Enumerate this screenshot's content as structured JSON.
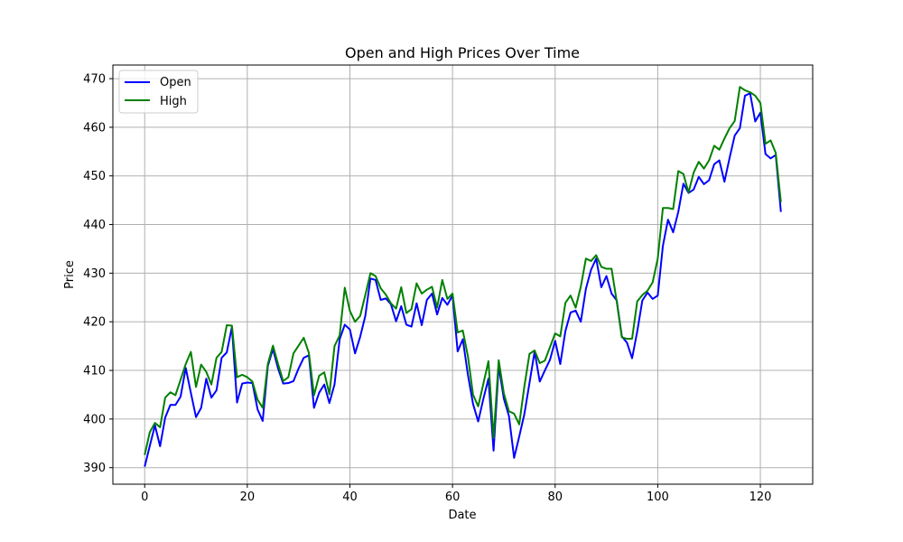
{
  "chart_data": {
    "type": "line",
    "title": "Open and High Prices Over Time",
    "xlabel": "Date",
    "ylabel": "Price",
    "xlim": [
      -6.2,
      130.2
    ],
    "ylim": [
      386.6,
      472.8
    ],
    "xticks": [
      0,
      20,
      40,
      60,
      80,
      100,
      120
    ],
    "yticks": [
      390,
      400,
      410,
      420,
      430,
      440,
      450,
      460,
      470
    ],
    "grid": true,
    "legend_position": "upper-left",
    "series": [
      {
        "name": "Open",
        "color": "#0000ff",
        "values": [
          390.2,
          394.5,
          398.7,
          394.4,
          400.3,
          402.9,
          402.9,
          404.6,
          410.5,
          405.4,
          400.4,
          402.3,
          408.3,
          404.4,
          405.9,
          412.6,
          413.7,
          418.9,
          403.4,
          407.3,
          407.5,
          407.4,
          402.0,
          399.6,
          410.9,
          414.4,
          410.4,
          407.3,
          407.4,
          407.8,
          410.4,
          412.6,
          413.1,
          402.3,
          405.4,
          407.1,
          403.3,
          407.1,
          416.4,
          419.4,
          418.4,
          413.5,
          416.9,
          421.2,
          428.9,
          428.6,
          424.5,
          424.8,
          423.6,
          420.1,
          423.2,
          419.4,
          419.0,
          423.8,
          419.3,
          424.5,
          425.8,
          421.5,
          424.9,
          423.5,
          425.4,
          413.9,
          416.4,
          409.1,
          403.1,
          399.5,
          404.1,
          408.3,
          393.5,
          410.9,
          404.2,
          400.6,
          392.0,
          396.4,
          401.0,
          407.4,
          413.9,
          407.7,
          410.0,
          412.2,
          416.1,
          411.3,
          418.1,
          421.9,
          422.3,
          420.0,
          426.8,
          430.7,
          433.0,
          427.1,
          429.4,
          425.8,
          424.4,
          417.0,
          415.7,
          412.5,
          418.0,
          424.4,
          426.0,
          424.7,
          425.4,
          435.6,
          441.0,
          438.4,
          442.6,
          448.4,
          446.5,
          447.2,
          449.8,
          448.3,
          449.1,
          452.4,
          453.2,
          448.8,
          453.7,
          458.3,
          459.8,
          466.5,
          467.0,
          461.2,
          463.0,
          454.5,
          453.6,
          454.3,
          442.6
        ]
      },
      {
        "name": "High",
        "color": "#008000",
        "values": [
          392.6,
          397.3,
          399.2,
          398.3,
          404.4,
          405.5,
          404.9,
          408.1,
          411.3,
          413.8,
          406.6,
          411.2,
          409.7,
          407.1,
          412.6,
          413.8,
          419.3,
          419.2,
          408.6,
          409.1,
          408.6,
          407.7,
          404.0,
          402.3,
          411.3,
          415.1,
          411.3,
          407.8,
          408.6,
          413.5,
          415.1,
          416.7,
          413.6,
          404.9,
          408.9,
          409.6,
          405.1,
          415.0,
          417.2,
          427.0,
          422.2,
          420.0,
          421.2,
          425.5,
          430.0,
          429.4,
          426.9,
          425.6,
          423.8,
          422.7,
          427.1,
          421.8,
          422.6,
          427.9,
          425.8,
          426.6,
          427.2,
          422.9,
          428.6,
          424.7,
          425.8,
          417.8,
          418.2,
          412.9,
          405.0,
          402.6,
          407.2,
          411.9,
          396.1,
          412.1,
          405.3,
          401.6,
          401.1,
          398.9,
          406.7,
          413.4,
          414.1,
          411.5,
          412.0,
          414.8,
          417.6,
          417.0,
          423.9,
          425.4,
          422.9,
          427.2,
          433.0,
          432.5,
          433.7,
          431.3,
          430.9,
          430.9,
          424.2,
          416.8,
          416.5,
          416.5,
          424.2,
          425.5,
          426.4,
          428.1,
          433.0,
          443.4,
          443.4,
          443.2,
          451.0,
          450.4,
          446.6,
          450.7,
          452.9,
          451.5,
          453.2,
          456.2,
          455.4,
          457.7,
          459.8,
          461.3,
          468.3,
          467.6,
          467.2,
          466.5,
          465.0,
          456.6,
          457.3,
          454.7,
          444.6
        ]
      }
    ]
  }
}
